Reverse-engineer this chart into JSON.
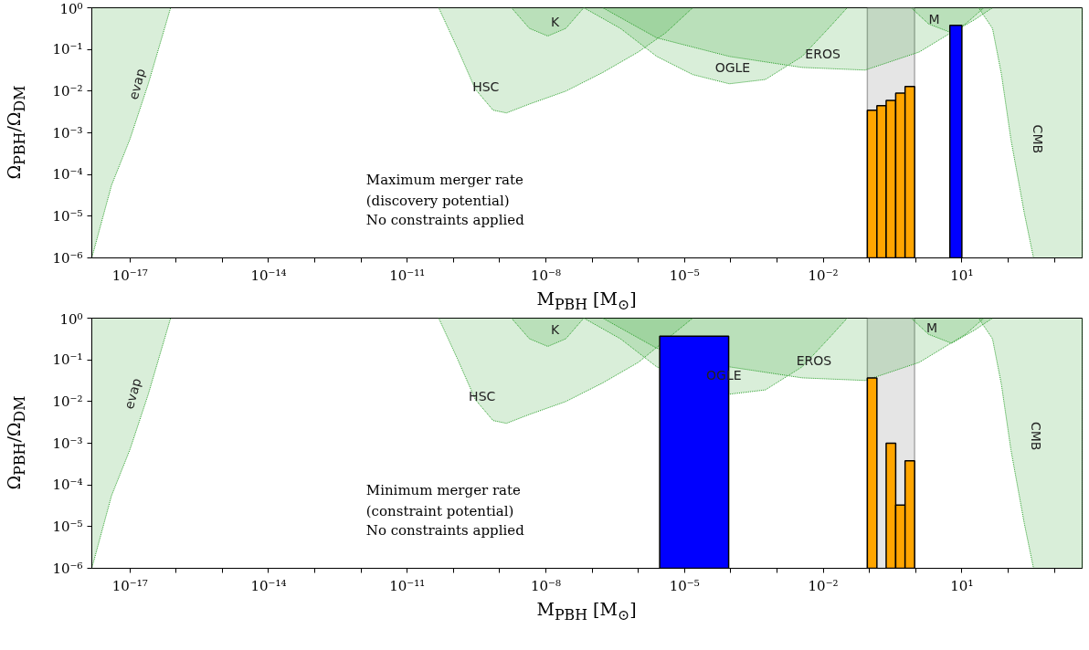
{
  "chart_data": [
    {
      "type": "histogram",
      "xlabel": "M$_{PBH}$ [M$_{⊙}$]",
      "ylabel": "Ω$_{PBH}$/Ω$_{DM}$",
      "log": "xy",
      "xlim": [
        1.5e-18,
        4000
      ],
      "ylim": [
        1e-06,
        1
      ],
      "xticks": [
        {
          "value": 1e-17,
          "label": "10⁻¹⁷"
        },
        {
          "value": 1e-14,
          "label": "10⁻¹⁴"
        },
        {
          "value": 1e-11,
          "label": "10⁻¹¹"
        },
        {
          "value": 1e-08,
          "label": "10⁻⁸"
        },
        {
          "value": 1e-05,
          "label": "10⁻⁵"
        },
        {
          "value": 0.01,
          "label": "10⁻²"
        },
        {
          "value": 10,
          "label": "10¹"
        },
        {
          "value": 1e-16,
          "label": null
        },
        {
          "value": 1e-15,
          "label": null
        },
        {
          "value": 1e-13,
          "label": null
        },
        {
          "value": 1e-12,
          "label": null
        },
        {
          "value": 1e-10,
          "label": null
        },
        {
          "value": 1e-09,
          "label": null
        },
        {
          "value": 1e-07,
          "label": null
        },
        {
          "value": 1e-06,
          "label": null
        },
        {
          "value": 0.0001,
          "label": null
        },
        {
          "value": 0.001,
          "label": null
        },
        {
          "value": 0.1,
          "label": null
        },
        {
          "value": 1,
          "label": null
        },
        {
          "value": 100,
          "label": null
        },
        {
          "value": 1000,
          "label": null
        }
      ],
      "yticks": [
        {
          "value": 1e-06,
          "label": "10⁻⁶"
        },
        {
          "value": 1e-05,
          "label": "10⁻⁵"
        },
        {
          "value": 0.0001,
          "label": "10⁻⁴"
        },
        {
          "value": 0.001,
          "label": "10⁻³"
        },
        {
          "value": 0.01,
          "label": "10⁻²"
        },
        {
          "value": 0.1,
          "label": "10⁻¹"
        },
        {
          "value": 1,
          "label": "10⁰"
        }
      ],
      "bands": [
        {
          "axis": "x",
          "from": 0.09,
          "to": 0.95,
          "color": "#e5e5e5"
        }
      ],
      "series": [
        {
          "type": "area",
          "color": "#2ca02c",
          "x": [
            1.5e-18,
            1.5e-18,
            4e-18,
            1e-17,
            2.5e-17,
            7.6e-17
          ],
          "values": [
            1,
            1e-06,
            5.5e-05,
            0.0007,
            0.015,
            1
          ]
        },
        {
          "type": "area",
          "color": "#2ca02c",
          "x": [
            4.8e-11,
            1.2e-10,
            3e-10,
            7.2e-10,
            1.4e-09,
            4.4e-09,
            2.7e-08,
            1.7e-07,
            1e-06,
            3.9e-06,
            1.5e-05
          ],
          "values": [
            1,
            0.11,
            0.011,
            0.0035,
            0.003,
            0.0049,
            0.01,
            0.028,
            0.087,
            0.25,
            1
          ]
        },
        {
          "type": "area",
          "color": "#2ca02c",
          "x": [
            1.8e-09,
            4.4e-09,
            1.1e-08,
            2.7e-08,
            6.6e-08
          ],
          "values": [
            1,
            0.32,
            0.21,
            0.32,
            1
          ]
        },
        {
          "type": "area",
          "color": "#2ca02c",
          "x": [
            6.6e-08,
            4.1e-07,
            2.5e-06,
            1.5e-05,
            9.3e-05,
            0.00056,
            0.0035,
            0.013,
            0.033
          ],
          "values": [
            1,
            0.32,
            0.068,
            0.025,
            0.015,
            0.019,
            0.068,
            0.32,
            1
          ]
        },
        {
          "type": "area",
          "color": "#2ca02c",
          "x": [
            1.7e-07,
            2.5e-06,
            9.3e-05,
            0.0035,
            0.081,
            1.2,
            12,
            30
          ],
          "values": [
            1,
            0.19,
            0.068,
            0.037,
            0.032,
            0.087,
            0.41,
            1
          ]
        },
        {
          "type": "area",
          "color": "#2ca02c",
          "x": [
            0.8,
            1.9,
            6,
            19,
            46
          ],
          "values": [
            1,
            0.41,
            0.25,
            0.52,
            1
          ]
        },
        {
          "type": "area",
          "color": "#2ca02c",
          "x": [
            23,
            46,
            72,
            115,
            224,
            355,
            4000,
            4000
          ],
          "values": [
            1,
            0.32,
            0.025,
            0.0007,
            1.2e-05,
            1e-06,
            1e-06,
            1
          ]
        },
        {
          "color": "#ffa500",
          "bins": [
            0.09,
            0.145,
            0.23,
            0.37,
            0.59,
            0.95
          ],
          "values": [
            0.0035,
            0.0045,
            0.006,
            0.009,
            0.013
          ]
        },
        {
          "color": "#0000ff",
          "bins": [
            5.5,
            10
          ],
          "values": [
            0.38
          ]
        }
      ],
      "annotations": [
        "evap",
        "HSC",
        "K",
        "OGLE",
        "EROS",
        "M",
        "CMB",
        "Maximum merger rate\n(discovery potential)",
        "No constraints applied"
      ]
    },
    {
      "type": "histogram",
      "xlabel": "M$_{PBH}$ [M$_{⊙}$]",
      "ylabel": "Ω$_{PBH}$/Ω$_{DM}$",
      "log": "xy",
      "xlim": [
        1.5e-18,
        4000
      ],
      "ylim": [
        1e-06,
        1
      ],
      "xticks": [
        {
          "value": 1e-17,
          "label": "10⁻¹⁷"
        },
        {
          "value": 1e-14,
          "label": "10⁻¹⁴"
        },
        {
          "value": 1e-11,
          "label": "10⁻¹¹"
        },
        {
          "value": 1e-08,
          "label": "10⁻⁸"
        },
        {
          "value": 1e-05,
          "label": "10⁻⁵"
        },
        {
          "value": 0.01,
          "label": "10⁻²"
        },
        {
          "value": 10,
          "label": "10¹"
        },
        {
          "value": 1e-16,
          "label": null
        },
        {
          "value": 1e-15,
          "label": null
        },
        {
          "value": 1e-13,
          "label": null
        },
        {
          "value": 1e-12,
          "label": null
        },
        {
          "value": 1e-10,
          "label": null
        },
        {
          "value": 1e-09,
          "label": null
        },
        {
          "value": 1e-07,
          "label": null
        },
        {
          "value": 1e-06,
          "label": null
        },
        {
          "value": 0.0001,
          "label": null
        },
        {
          "value": 0.001,
          "label": null
        },
        {
          "value": 0.1,
          "label": null
        },
        {
          "value": 1,
          "label": null
        },
        {
          "value": 100,
          "label": null
        },
        {
          "value": 1000,
          "label": null
        }
      ],
      "yticks": [
        {
          "value": 1e-06,
          "label": "10⁻⁶"
        },
        {
          "value": 1e-05,
          "label": "10⁻⁵"
        },
        {
          "value": 0.0001,
          "label": "10⁻⁴"
        },
        {
          "value": 0.001,
          "label": "10⁻³"
        },
        {
          "value": 0.01,
          "label": "10⁻²"
        },
        {
          "value": 0.1,
          "label": "10⁻¹"
        },
        {
          "value": 1,
          "label": "10⁰"
        }
      ],
      "bands": [
        {
          "axis": "x",
          "from": 0.09,
          "to": 0.95,
          "color": "#e5e5e5"
        }
      ],
      "series": [
        {
          "type": "area",
          "color": "#2ca02c",
          "x": [
            1.5e-18,
            1.5e-18,
            4e-18,
            1e-17,
            2.5e-17,
            7.6e-17
          ],
          "values": [
            1,
            1e-06,
            5.5e-05,
            0.0007,
            0.015,
            1
          ]
        },
        {
          "type": "area",
          "color": "#2ca02c",
          "x": [
            4.8e-11,
            1.2e-10,
            3e-10,
            7.2e-10,
            1.4e-09,
            4.4e-09,
            2.7e-08,
            1.7e-07,
            1e-06,
            1.5e-05
          ],
          "values": [
            1,
            0.11,
            0.011,
            0.0035,
            0.003,
            0.0049,
            0.01,
            0.028,
            0.087,
            1
          ]
        },
        {
          "type": "area",
          "color": "#2ca02c",
          "x": [
            1.8e-09,
            4.4e-09,
            1.1e-08,
            2.7e-08,
            6.6e-08
          ],
          "values": [
            1,
            0.32,
            0.21,
            0.32,
            1
          ]
        },
        {
          "type": "area",
          "color": "#2ca02c",
          "x": [
            6.6e-08,
            4.1e-07,
            2.5e-06,
            9.3e-05,
            0.00056,
            0.0035,
            0.013,
            0.033
          ],
          "values": [
            1,
            0.32,
            0.068,
            0.015,
            0.019,
            0.068,
            0.32,
            1
          ]
        },
        {
          "type": "area",
          "color": "#2ca02c",
          "x": [
            1.7e-07,
            2.5e-06,
            9.3e-05,
            0.0035,
            0.081,
            1.2,
            12,
            30
          ],
          "values": [
            1,
            0.19,
            0.068,
            0.037,
            0.032,
            0.087,
            0.41,
            1
          ]
        },
        {
          "type": "area",
          "color": "#2ca02c",
          "x": [
            0.8,
            1.9,
            6,
            19,
            46
          ],
          "values": [
            1,
            0.41,
            0.25,
            0.52,
            1
          ]
        },
        {
          "type": "area",
          "color": "#2ca02c",
          "x": [
            23,
            46,
            72,
            115,
            224,
            355,
            4000,
            4000
          ],
          "values": [
            1,
            0.32,
            0.025,
            0.0007,
            1.2e-05,
            1e-06,
            1e-06,
            1
          ]
        },
        {
          "color": "#ffa500",
          "bins": [
            0.09,
            0.145,
            0.23,
            0.37,
            0.59,
            0.95
          ],
          "values": [
            0.037,
            null,
            0.001,
            3.3e-05,
            0.00038
          ]
        },
        {
          "color": "#0000ff",
          "bins": [
            2.9e-06,
            9e-05
          ],
          "values": [
            0.37
          ]
        }
      ],
      "annotations": [
        "evap",
        "HSC",
        "K",
        "OGLE",
        "EROS",
        "M",
        "CMB",
        "Minimum merger rate\n(constraint potential)",
        "No constraints applied"
      ]
    }
  ]
}
